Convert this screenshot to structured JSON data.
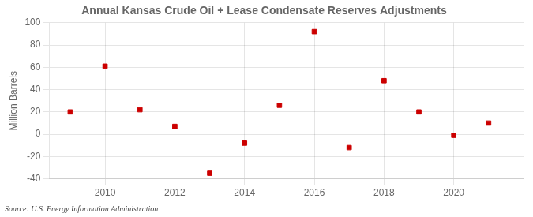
{
  "chart_data": {
    "type": "scatter",
    "title": "Annual Kansas Crude Oil + Lease Condensate Reserves Adjustments",
    "ylabel": "Million Barrels",
    "x": [
      2009,
      2010,
      2011,
      2012,
      2013,
      2014,
      2015,
      2016,
      2017,
      2018,
      2019,
      2020,
      2021
    ],
    "values": [
      20,
      61,
      22,
      7,
      -35,
      -8,
      26,
      92,
      -12,
      48,
      20,
      -1,
      10
    ],
    "color": "#cc0000",
    "marker": "square",
    "xlim": [
      2008.4,
      2022.0
    ],
    "xticks": [
      2010,
      2012,
      2014,
      2016,
      2018,
      2020
    ],
    "ylim": [
      -40,
      100
    ],
    "yticks": [
      -40,
      -20,
      0,
      20,
      40,
      60,
      80,
      100
    ],
    "grid": true,
    "annotations": [
      "Source: U.S. Energy Information Administration"
    ]
  }
}
